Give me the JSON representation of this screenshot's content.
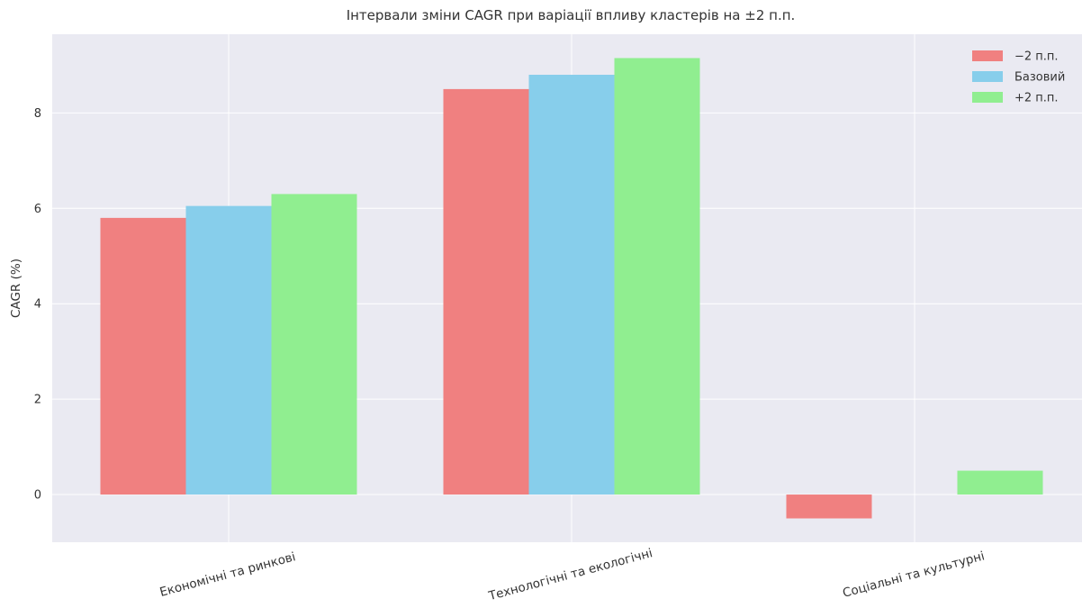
{
  "chart_data": {
    "type": "bar",
    "title": "Інтервали зміни CAGR при варіації впливу кластерів на ±2 п.п.",
    "xlabel": "",
    "ylabel": "CAGR (%)",
    "categories": [
      "Економічні та ринкові",
      "Технологічні та екологічні",
      "Соціальні та культурні"
    ],
    "series": [
      {
        "name": "−2 п.п.",
        "values": [
          5.8,
          8.5,
          -0.5
        ],
        "color": "#f08080"
      },
      {
        "name": "Базовий",
        "values": [
          6.05,
          8.8,
          0.0
        ],
        "color": "#87ceeb"
      },
      {
        "name": "+2 п.п.",
        "values": [
          6.3,
          9.15,
          0.5
        ],
        "color": "#90ee90"
      }
    ],
    "ylim": [
      -1.0,
      9.65
    ],
    "yticks": [
      0,
      2,
      4,
      6,
      8
    ],
    "grid": true,
    "legend_position": "top-right",
    "background_color": "#eaeaf2",
    "grid_color": "#ffffff",
    "category_label_rotation": -15
  }
}
